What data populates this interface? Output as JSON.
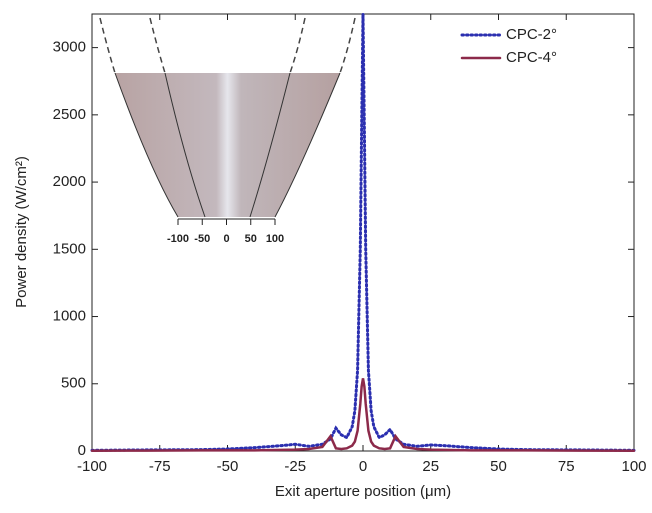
{
  "chart_data": {
    "type": "line",
    "xlabel": "Exit aperture position (μm)",
    "ylabel": "Power density (W/cm²)",
    "xlim": [
      -100,
      100
    ],
    "xticks": [
      -100,
      -75,
      -50,
      -25,
      0,
      25,
      50,
      75,
      100
    ],
    "ylim": [
      0,
      3250
    ],
    "yticks": [
      0,
      500,
      1000,
      1500,
      2000,
      2500,
      3000
    ],
    "legend": "upper right",
    "x": [
      -100,
      -80,
      -60,
      -50,
      -40,
      -30,
      -25,
      -20,
      -15,
      -12,
      -10,
      -8,
      -6,
      -4,
      -3,
      -2,
      -1,
      -0.5,
      0,
      0.5,
      1,
      2,
      3,
      4,
      6,
      8,
      10,
      12,
      15,
      20,
      25,
      30,
      40,
      50,
      60,
      80,
      100
    ],
    "series": [
      {
        "name": "CPC-2°",
        "color": "#2b2fb0",
        "style": "dotted",
        "values": [
          5,
          8,
          10,
          15,
          25,
          40,
          50,
          35,
          50,
          90,
          170,
          120,
          100,
          180,
          300,
          600,
          1500,
          2400,
          3250,
          2400,
          1500,
          600,
          300,
          180,
          100,
          120,
          160,
          90,
          50,
          35,
          45,
          40,
          25,
          15,
          10,
          8,
          5
        ]
      },
      {
        "name": "CPC-4°",
        "color": "#8c2a4a",
        "style": "solid",
        "values": [
          2,
          3,
          5,
          5,
          5,
          8,
          10,
          15,
          30,
          110,
          20,
          15,
          20,
          40,
          70,
          150,
          350,
          480,
          540,
          480,
          350,
          150,
          70,
          40,
          20,
          15,
          20,
          110,
          30,
          15,
          10,
          8,
          5,
          5,
          5,
          3,
          2
        ]
      }
    ],
    "inset": {
      "xticks": [
        -100,
        -50,
        0,
        50,
        100
      ]
    }
  }
}
